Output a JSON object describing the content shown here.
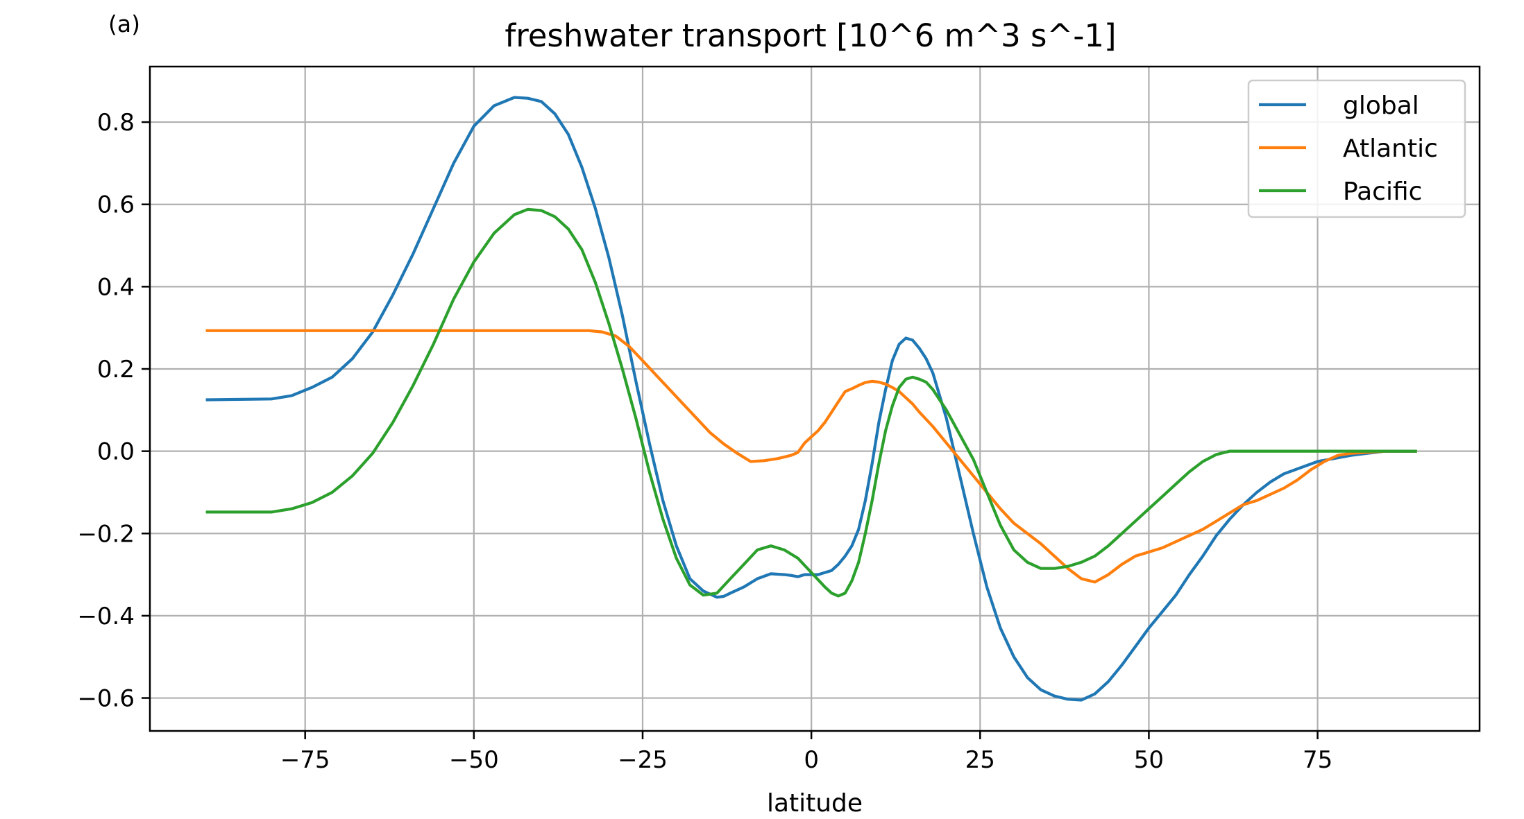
{
  "panel_label": "(a)",
  "chart_data": {
    "type": "line",
    "title": "freshwater transport [10^6 m^3 s^-1]",
    "xlabel": "latitude",
    "ylabel": "",
    "xlim": [
      -98,
      99
    ],
    "ylim": [
      -0.68,
      0.935
    ],
    "xticks": [
      -75,
      -50,
      -25,
      0,
      25,
      50,
      75
    ],
    "xtick_labels": [
      "−75",
      "−50",
      "−25",
      "0",
      "25",
      "50",
      "75"
    ],
    "yticks": [
      -0.6,
      -0.4,
      -0.2,
      0.0,
      0.2,
      0.4,
      0.6,
      0.8
    ],
    "ytick_labels": [
      "−0.6",
      "−0.4",
      "−0.2",
      "0.0",
      "0.2",
      "0.4",
      "0.6",
      "0.8"
    ],
    "grid": true,
    "legend_position": "top-right",
    "series": [
      {
        "name": "global",
        "color": "#1f77b4",
        "x": [
          -89.5,
          -80,
          -77,
          -74,
          -71,
          -68,
          -65,
          -62,
          -59,
          -56,
          -53,
          -50,
          -47,
          -44,
          -42,
          -40,
          -38,
          -36,
          -34,
          -32,
          -30,
          -28,
          -26,
          -24,
          -22,
          -20,
          -18,
          -16,
          -14,
          -13,
          -12,
          -10,
          -8,
          -6,
          -4,
          -3,
          -2,
          -1,
          0,
          1,
          2,
          3,
          4,
          5,
          6,
          7,
          8,
          9,
          10,
          11,
          12,
          13,
          14,
          15,
          16,
          17,
          18,
          20,
          22,
          24,
          26,
          28,
          30,
          32,
          34,
          36,
          38,
          40,
          42,
          44,
          46,
          48,
          50,
          52,
          54,
          56,
          58,
          60,
          62,
          64,
          66,
          68,
          70,
          75,
          80,
          85,
          89.5
        ],
        "y": [
          0.125,
          0.127,
          0.135,
          0.155,
          0.18,
          0.225,
          0.29,
          0.38,
          0.48,
          0.59,
          0.7,
          0.79,
          0.84,
          0.86,
          0.858,
          0.85,
          0.82,
          0.77,
          0.69,
          0.59,
          0.47,
          0.33,
          0.17,
          0.02,
          -0.12,
          -0.23,
          -0.31,
          -0.34,
          -0.355,
          -0.353,
          -0.345,
          -0.33,
          -0.31,
          -0.298,
          -0.3,
          -0.302,
          -0.305,
          -0.3,
          -0.3,
          -0.3,
          -0.295,
          -0.29,
          -0.275,
          -0.255,
          -0.23,
          -0.19,
          -0.12,
          -0.03,
          0.07,
          0.15,
          0.22,
          0.26,
          0.275,
          0.27,
          0.25,
          0.225,
          0.19,
          0.08,
          -0.06,
          -0.2,
          -0.33,
          -0.43,
          -0.5,
          -0.55,
          -0.58,
          -0.595,
          -0.603,
          -0.605,
          -0.59,
          -0.56,
          -0.52,
          -0.475,
          -0.43,
          -0.39,
          -0.35,
          -0.3,
          -0.255,
          -0.205,
          -0.165,
          -0.13,
          -0.1,
          -0.075,
          -0.055,
          -0.025,
          -0.01,
          0.0,
          0.0
        ]
      },
      {
        "name": "Atlantic",
        "color": "#ff7f0e",
        "x": [
          -89.5,
          -80,
          -60,
          -40,
          -33,
          -31,
          -29,
          -27,
          -25,
          -23,
          -21,
          -19,
          -17,
          -15,
          -13,
          -11,
          -9,
          -7,
          -5,
          -3,
          -2,
          -1,
          0,
          1,
          2,
          3,
          4,
          5,
          6,
          7,
          8,
          9,
          10,
          11,
          12,
          13,
          14,
          15,
          16,
          18,
          20,
          22,
          24,
          26,
          28,
          30,
          32,
          34,
          36,
          38,
          40,
          42,
          44,
          46,
          48,
          50,
          52,
          54,
          56,
          58,
          60,
          62,
          64,
          66,
          68,
          70,
          72,
          74,
          76,
          78,
          80,
          85,
          89.5
        ],
        "y": [
          0.293,
          0.293,
          0.293,
          0.293,
          0.293,
          0.29,
          0.28,
          0.255,
          0.22,
          0.185,
          0.15,
          0.115,
          0.08,
          0.045,
          0.018,
          -0.005,
          -0.025,
          -0.023,
          -0.018,
          -0.01,
          -0.003,
          0.02,
          0.035,
          0.05,
          0.07,
          0.095,
          0.12,
          0.145,
          0.152,
          0.16,
          0.167,
          0.17,
          0.168,
          0.163,
          0.155,
          0.145,
          0.13,
          0.115,
          0.095,
          0.06,
          0.02,
          -0.02,
          -0.06,
          -0.1,
          -0.14,
          -0.175,
          -0.2,
          -0.225,
          -0.255,
          -0.285,
          -0.31,
          -0.318,
          -0.3,
          -0.275,
          -0.255,
          -0.245,
          -0.235,
          -0.22,
          -0.205,
          -0.19,
          -0.17,
          -0.15,
          -0.13,
          -0.12,
          -0.105,
          -0.09,
          -0.07,
          -0.045,
          -0.025,
          -0.01,
          -0.005,
          0.0,
          0.0
        ]
      },
      {
        "name": "Pacific",
        "color": "#2ca02c",
        "x": [
          -89.5,
          -80,
          -77,
          -74,
          -71,
          -68,
          -65,
          -62,
          -59,
          -56,
          -53,
          -50,
          -47,
          -44,
          -42,
          -40,
          -38,
          -36,
          -34,
          -32,
          -30,
          -28,
          -26,
          -24,
          -22,
          -20,
          -18,
          -16,
          -14,
          -12,
          -10,
          -8,
          -6,
          -4,
          -2,
          0,
          2,
          3,
          4,
          5,
          6,
          7,
          8,
          9,
          10,
          11,
          12,
          13,
          14,
          15,
          16,
          17,
          18,
          20,
          22,
          24,
          26,
          28,
          30,
          32,
          34,
          36,
          38,
          40,
          42,
          44,
          46,
          48,
          50,
          52,
          54,
          56,
          58,
          60,
          62,
          64,
          70,
          80,
          89.5
        ],
        "y": [
          -0.148,
          -0.148,
          -0.14,
          -0.125,
          -0.1,
          -0.06,
          -0.005,
          0.07,
          0.16,
          0.26,
          0.37,
          0.46,
          0.53,
          0.575,
          0.588,
          0.585,
          0.57,
          0.54,
          0.49,
          0.41,
          0.31,
          0.2,
          0.08,
          -0.05,
          -0.165,
          -0.26,
          -0.325,
          -0.35,
          -0.345,
          -0.31,
          -0.275,
          -0.24,
          -0.23,
          -0.24,
          -0.26,
          -0.295,
          -0.33,
          -0.345,
          -0.352,
          -0.345,
          -0.315,
          -0.27,
          -0.2,
          -0.12,
          -0.03,
          0.05,
          0.11,
          0.155,
          0.175,
          0.18,
          0.175,
          0.168,
          0.15,
          0.1,
          0.04,
          -0.02,
          -0.1,
          -0.18,
          -0.24,
          -0.27,
          -0.285,
          -0.285,
          -0.28,
          -0.27,
          -0.255,
          -0.23,
          -0.2,
          -0.17,
          -0.14,
          -0.11,
          -0.08,
          -0.05,
          -0.025,
          -0.008,
          0.0,
          0.0,
          0.0,
          0.0,
          0.0
        ]
      }
    ]
  }
}
